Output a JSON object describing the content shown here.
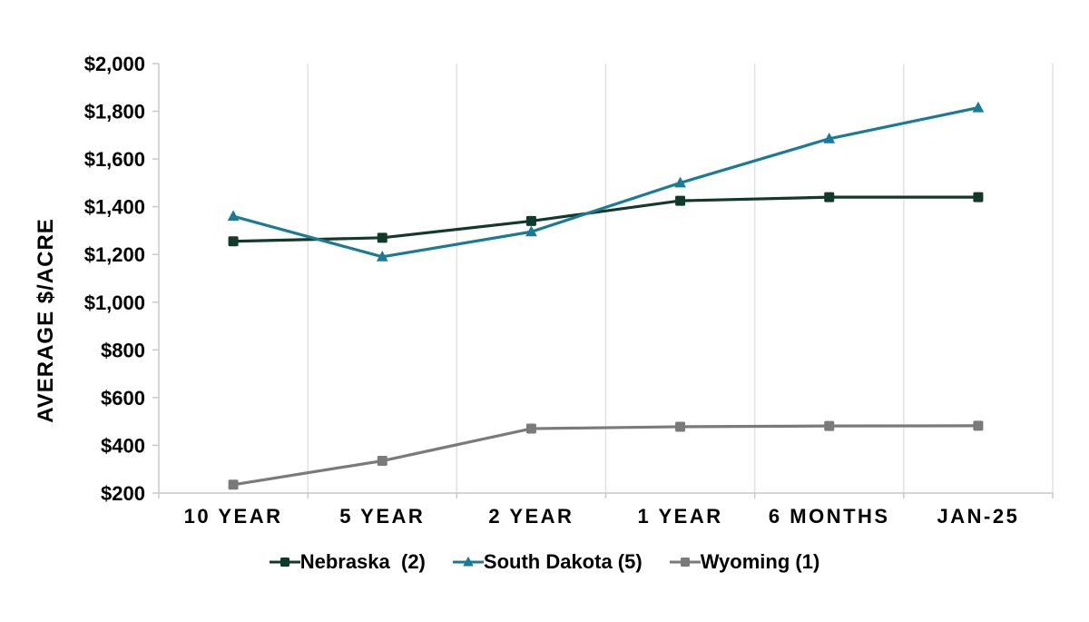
{
  "chart_data": {
    "type": "line",
    "title": "",
    "xlabel": "",
    "ylabel": "AVERAGE $/ACRE",
    "categories": [
      "10 YEAR",
      "5 YEAR",
      "2 YEAR",
      "1 YEAR",
      "6 MONTHS",
      "JAN-25"
    ],
    "series": [
      {
        "name": "Nebraska  (2)",
        "marker": "square",
        "color": "#123A2B",
        "values": [
          1255,
          1270,
          1340,
          1425,
          1440,
          1440
        ]
      },
      {
        "name": "South Dakota (5)",
        "marker": "triangle",
        "color": "#1B7A96",
        "values": [
          1360,
          1190,
          1295,
          1500,
          1685,
          1815
        ]
      },
      {
        "name": "Wyoming (1)",
        "marker": "square",
        "color": "#7A7A7A",
        "values": [
          235,
          335,
          470,
          478,
          481,
          482
        ]
      }
    ],
    "ylim": [
      200,
      2000
    ],
    "y_ticks": [
      {
        "value": 200,
        "label": "$200"
      },
      {
        "value": 400,
        "label": "$400"
      },
      {
        "value": 600,
        "label": "$600"
      },
      {
        "value": 800,
        "label": "$800"
      },
      {
        "value": 1000,
        "label": "$1,000"
      },
      {
        "value": 1200,
        "label": "$1,200"
      },
      {
        "value": 1400,
        "label": "$1,400"
      },
      {
        "value": 1600,
        "label": "$1,600"
      },
      {
        "value": 1800,
        "label": "$1,800"
      },
      {
        "value": 2000,
        "label": "$2,000"
      }
    ],
    "grid": "vertical-only",
    "legend_position": "bottom",
    "colors": {
      "gridline": "#E2E2E2",
      "axis": "#C9C9C9",
      "text": "#000000",
      "background": "#FFFFFF"
    }
  }
}
